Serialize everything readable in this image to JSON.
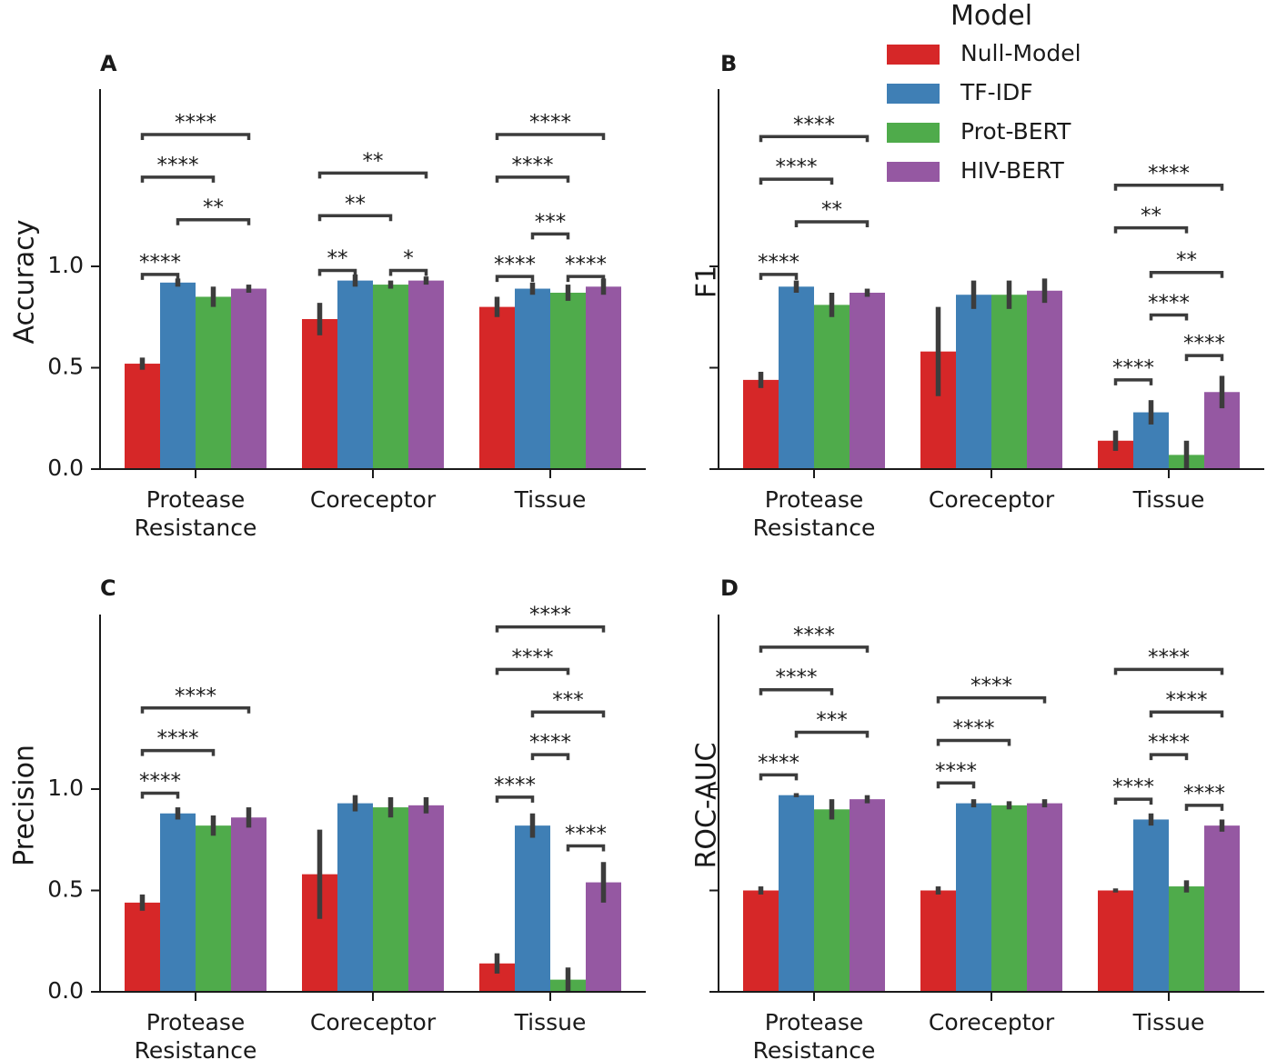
{
  "chart_data": {
    "type": "bar",
    "categories": [
      [
        "Protease",
        "Resistance"
      ],
      [
        "Coreceptor"
      ],
      [
        "Tissue"
      ]
    ],
    "colors": [
      "#d62728",
      "#3f7fb5",
      "#4fab4b",
      "#9558a2"
    ],
    "legend": {
      "title": "Model",
      "entries": [
        "Null-Model",
        "TF-IDF",
        "Prot-BERT",
        "HIV-BERT"
      ],
      "position": "top-right"
    },
    "panels": [
      {
        "id": "A",
        "ylabel": "Accuracy",
        "ylim": [
          0,
          1.85
        ],
        "yticks": [
          "0.0",
          "0.5",
          "1.0"
        ],
        "show_tick_labels": true,
        "series": [
          {
            "name": "Null-Model",
            "values": [
              0.52,
              0.74,
              0.8
            ],
            "err": [
              0.03,
              0.08,
              0.05
            ]
          },
          {
            "name": "TF-IDF",
            "values": [
              0.92,
              0.93,
              0.89
            ],
            "err": [
              0.02,
              0.03,
              0.03
            ]
          },
          {
            "name": "Prot-BERT",
            "values": [
              0.85,
              0.91,
              0.87
            ],
            "err": [
              0.05,
              0.02,
              0.04
            ]
          },
          {
            "name": "HIV-BERT",
            "values": [
              0.89,
              0.93,
              0.9
            ],
            "err": [
              0.02,
              0.02,
              0.04
            ]
          }
        ],
        "annotations": [
          {
            "cat": 0,
            "from": 0,
            "to": 1,
            "level": 0.96,
            "label": "****"
          },
          {
            "cat": 0,
            "from": 1,
            "to": 3,
            "level": 1.23,
            "label": "**"
          },
          {
            "cat": 0,
            "from": 0,
            "to": 2,
            "level": 1.44,
            "label": "****"
          },
          {
            "cat": 0,
            "from": 0,
            "to": 3,
            "level": 1.65,
            "label": "****"
          },
          {
            "cat": 1,
            "from": 0,
            "to": 1,
            "level": 0.98,
            "label": "**"
          },
          {
            "cat": 1,
            "from": 2,
            "to": 3,
            "level": 0.98,
            "label": "*"
          },
          {
            "cat": 1,
            "from": 0,
            "to": 2,
            "level": 1.25,
            "label": "**"
          },
          {
            "cat": 1,
            "from": 0,
            "to": 3,
            "level": 1.46,
            "label": "**"
          },
          {
            "cat": 2,
            "from": 0,
            "to": 1,
            "level": 0.95,
            "label": "****"
          },
          {
            "cat": 2,
            "from": 2,
            "to": 3,
            "level": 0.95,
            "label": "****"
          },
          {
            "cat": 2,
            "from": 1,
            "to": 2,
            "level": 1.16,
            "label": "***"
          },
          {
            "cat": 2,
            "from": 0,
            "to": 2,
            "level": 1.44,
            "label": "****"
          },
          {
            "cat": 2,
            "from": 0,
            "to": 3,
            "level": 1.65,
            "label": "****"
          }
        ]
      },
      {
        "id": "B",
        "ylabel": "F1",
        "ylim": [
          0,
          1.85
        ],
        "yticks": [
          "",
          "",
          ""
        ],
        "show_tick_labels": false,
        "series": [
          {
            "name": "Null-Model",
            "values": [
              0.44,
              0.58,
              0.14
            ],
            "err": [
              0.04,
              0.22,
              0.05
            ]
          },
          {
            "name": "TF-IDF",
            "values": [
              0.9,
              0.86,
              0.28
            ],
            "err": [
              0.03,
              0.07,
              0.06
            ]
          },
          {
            "name": "Prot-BERT",
            "values": [
              0.81,
              0.86,
              0.07
            ],
            "err": [
              0.06,
              0.07,
              0.07
            ]
          },
          {
            "name": "HIV-BERT",
            "values": [
              0.87,
              0.88,
              0.38
            ],
            "err": [
              0.02,
              0.06,
              0.08
            ]
          }
        ],
        "annotations": [
          {
            "cat": 0,
            "from": 0,
            "to": 1,
            "level": 0.96,
            "label": "****"
          },
          {
            "cat": 0,
            "from": 1,
            "to": 3,
            "level": 1.22,
            "label": "**"
          },
          {
            "cat": 0,
            "from": 0,
            "to": 2,
            "level": 1.43,
            "label": "****"
          },
          {
            "cat": 0,
            "from": 0,
            "to": 3,
            "level": 1.64,
            "label": "****"
          },
          {
            "cat": 2,
            "from": 0,
            "to": 1,
            "level": 0.44,
            "label": "****"
          },
          {
            "cat": 2,
            "from": 2,
            "to": 3,
            "level": 0.56,
            "label": "****"
          },
          {
            "cat": 2,
            "from": 1,
            "to": 2,
            "level": 0.76,
            "label": "****"
          },
          {
            "cat": 2,
            "from": 1,
            "to": 3,
            "level": 0.97,
            "label": "**"
          },
          {
            "cat": 2,
            "from": 0,
            "to": 2,
            "level": 1.19,
            "label": "**"
          },
          {
            "cat": 2,
            "from": 0,
            "to": 3,
            "level": 1.4,
            "label": "****"
          }
        ]
      },
      {
        "id": "C",
        "ylabel": "Precision",
        "ylim": [
          0,
          1.85
        ],
        "yticks": [
          "0.0",
          "0.5",
          "1.0"
        ],
        "show_tick_labels": true,
        "series": [
          {
            "name": "Null-Model",
            "values": [
              0.44,
              0.58,
              0.14
            ],
            "err": [
              0.04,
              0.22,
              0.05
            ]
          },
          {
            "name": "TF-IDF",
            "values": [
              0.88,
              0.93,
              0.82
            ],
            "err": [
              0.03,
              0.04,
              0.06
            ]
          },
          {
            "name": "Prot-BERT",
            "values": [
              0.82,
              0.91,
              0.06
            ],
            "err": [
              0.05,
              0.05,
              0.06
            ]
          },
          {
            "name": "HIV-BERT",
            "values": [
              0.86,
              0.92,
              0.54
            ],
            "err": [
              0.05,
              0.04,
              0.1
            ]
          }
        ],
        "annotations": [
          {
            "cat": 0,
            "from": 0,
            "to": 1,
            "level": 0.98,
            "label": "****"
          },
          {
            "cat": 0,
            "from": 0,
            "to": 2,
            "level": 1.19,
            "label": "****"
          },
          {
            "cat": 0,
            "from": 0,
            "to": 3,
            "level": 1.4,
            "label": "****"
          },
          {
            "cat": 2,
            "from": 2,
            "to": 3,
            "level": 0.72,
            "label": "****"
          },
          {
            "cat": 2,
            "from": 0,
            "to": 1,
            "level": 0.96,
            "label": "****"
          },
          {
            "cat": 2,
            "from": 1,
            "to": 2,
            "level": 1.17,
            "label": "****"
          },
          {
            "cat": 2,
            "from": 1,
            "to": 3,
            "level": 1.38,
            "label": "***"
          },
          {
            "cat": 2,
            "from": 0,
            "to": 2,
            "level": 1.59,
            "label": "****"
          },
          {
            "cat": 2,
            "from": 0,
            "to": 3,
            "level": 1.8,
            "label": "****"
          }
        ]
      },
      {
        "id": "D",
        "ylabel": "ROC-AUC",
        "ylim": [
          0,
          1.85
        ],
        "yticks": [
          "",
          "",
          ""
        ],
        "show_tick_labels": false,
        "series": [
          {
            "name": "Null-Model",
            "values": [
              0.5,
              0.5,
              0.5
            ],
            "err": [
              0.02,
              0.02,
              0.01
            ]
          },
          {
            "name": "TF-IDF",
            "values": [
              0.97,
              0.93,
              0.85
            ],
            "err": [
              0.01,
              0.02,
              0.03
            ]
          },
          {
            "name": "Prot-BERT",
            "values": [
              0.9,
              0.92,
              0.52
            ],
            "err": [
              0.05,
              0.02,
              0.03
            ]
          },
          {
            "name": "HIV-BERT",
            "values": [
              0.95,
              0.93,
              0.82
            ],
            "err": [
              0.02,
              0.02,
              0.03
            ]
          }
        ],
        "annotations": [
          {
            "cat": 0,
            "from": 0,
            "to": 1,
            "level": 1.07,
            "label": "****"
          },
          {
            "cat": 0,
            "from": 1,
            "to": 3,
            "level": 1.28,
            "label": "***"
          },
          {
            "cat": 0,
            "from": 0,
            "to": 2,
            "level": 1.49,
            "label": "****"
          },
          {
            "cat": 0,
            "from": 0,
            "to": 3,
            "level": 1.7,
            "label": "****"
          },
          {
            "cat": 1,
            "from": 0,
            "to": 1,
            "level": 1.03,
            "label": "****"
          },
          {
            "cat": 1,
            "from": 0,
            "to": 2,
            "level": 1.24,
            "label": "****"
          },
          {
            "cat": 1,
            "from": 0,
            "to": 3,
            "level": 1.45,
            "label": "****"
          },
          {
            "cat": 2,
            "from": 0,
            "to": 1,
            "level": 0.95,
            "label": "****"
          },
          {
            "cat": 2,
            "from": 2,
            "to": 3,
            "level": 0.92,
            "label": "****"
          },
          {
            "cat": 2,
            "from": 1,
            "to": 2,
            "level": 1.17,
            "label": "****"
          },
          {
            "cat": 2,
            "from": 1,
            "to": 3,
            "level": 1.38,
            "label": "****"
          },
          {
            "cat": 2,
            "from": 0,
            "to": 3,
            "level": 1.59,
            "label": "****"
          }
        ]
      }
    ]
  }
}
